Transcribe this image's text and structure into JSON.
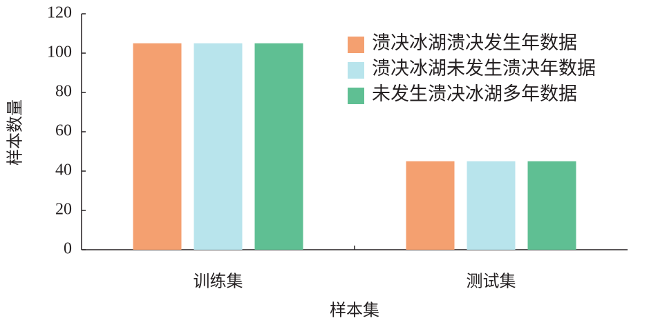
{
  "chart_data": {
    "type": "bar",
    "xlabel": "样本集",
    "ylabel": "样本数量",
    "categories": [
      "训练集",
      "测试集"
    ],
    "series": [
      {
        "name": "溃决冰湖溃决发生年数据",
        "color": "#f4a070",
        "values": [
          105,
          45
        ]
      },
      {
        "name": "溃决冰湖未发生溃决年数据",
        "color": "#b8e4ec",
        "values": [
          105,
          45
        ]
      },
      {
        "name": "未发生溃决冰湖多年数据",
        "color": "#5fbf93",
        "values": [
          105,
          45
        ]
      }
    ],
    "ylim": [
      0,
      120
    ],
    "yticks": [
      0,
      20,
      40,
      60,
      80,
      100,
      120
    ],
    "legend": "upper right"
  }
}
